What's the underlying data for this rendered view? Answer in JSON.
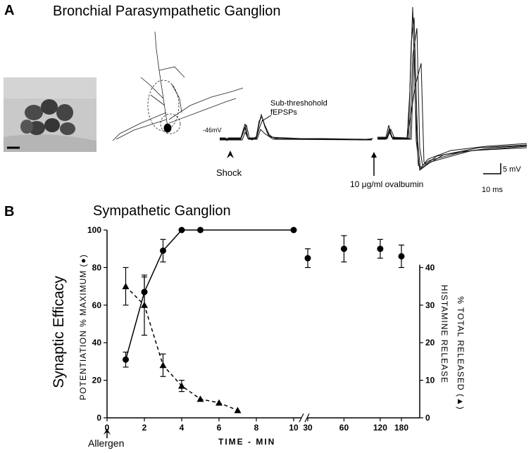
{
  "panel_a": {
    "letter": "A",
    "title": "Bronchial Parasympathetic Ganglion",
    "resting_potential": "-46mV",
    "subthreshold_label_line1": "Sub-threshohold",
    "subthreshold_label_line2": "fEPSPs",
    "shock_label": "Shock",
    "ovalbumin_label": "10 μg/ml ovalbumin",
    "scale_voltage": "5 mV",
    "scale_time": "10 ms"
  },
  "panel_b": {
    "letter": "B",
    "title": "Sympathetic Ganglion",
    "side_label": "Synaptic Efficacy",
    "allergen_label": "Allergen",
    "left_axis_label": "POTENTIATION % MAXIMUM (●)",
    "right_axis_label_line1": "HISTAMINE RELEASE",
    "right_axis_label_line2": "% TOTAL RELEASED (▲)"
  },
  "chart_data": {
    "type": "line",
    "xlabel": "TIME - MIN",
    "x_ticks": [
      "0",
      "2",
      "4",
      "6",
      "8",
      "10",
      "30",
      "60",
      "120",
      "180"
    ],
    "y_ticks_left": [
      "0",
      "20",
      "40",
      "60",
      "80",
      "100"
    ],
    "y_ticks_right": [
      "0",
      "10",
      "20",
      "30",
      "40"
    ],
    "ylim_left": [
      0,
      100
    ],
    "ylim_right": [
      0,
      50
    ],
    "series": [
      {
        "name": "●",
        "axis": "left",
        "marker": "circle",
        "line": "solid",
        "points": [
          {
            "x": "1",
            "y": 31,
            "err": 4
          },
          {
            "x": "2",
            "y": 67,
            "err": 8
          },
          {
            "x": "3",
            "y": 89,
            "err": 6
          },
          {
            "x": "4",
            "y": 100,
            "err": 0
          },
          {
            "x": "5",
            "y": 100,
            "err": 0
          },
          {
            "x": "10",
            "y": 100,
            "err": 0
          }
        ]
      },
      {
        "name": "●",
        "axis": "left",
        "marker": "circle",
        "line": "none",
        "points": [
          {
            "x": "30",
            "y": 85,
            "err": 5
          },
          {
            "x": "60",
            "y": 90,
            "err": 7
          },
          {
            "x": "120",
            "y": 90,
            "err": 5
          },
          {
            "x": "180",
            "y": 86,
            "err": 6
          }
        ]
      },
      {
        "name": "▲",
        "axis": "right",
        "marker": "triangle",
        "line": "dashed",
        "points": [
          {
            "x": "1",
            "y": 35,
            "err": 5
          },
          {
            "x": "2",
            "y": 30,
            "err": 8
          },
          {
            "x": "3",
            "y": 14,
            "err": 3
          },
          {
            "x": "4",
            "y": 8.5,
            "err": 1.5
          },
          {
            "x": "5",
            "y": 5,
            "err": 0
          },
          {
            "x": "6",
            "y": 4,
            "err": 0
          },
          {
            "x": "7",
            "y": 2,
            "err": 0
          }
        ]
      }
    ]
  }
}
